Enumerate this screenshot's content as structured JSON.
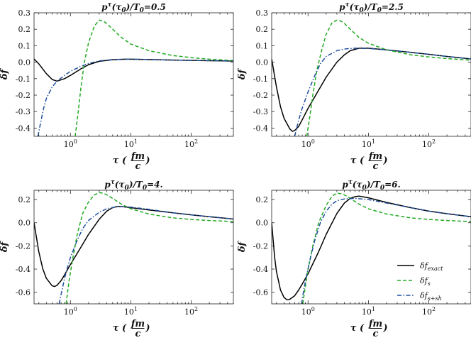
{
  "figure": {
    "background": "#ffffff"
  },
  "chart_data": [
    {
      "type": "line",
      "title": "p^τ(τ0)/T0=0.5",
      "title_parts": {
        "main": "p",
        "sup": "τ",
        "rest": "(τ",
        "sub": "0",
        "rest2": ")/T",
        "sub2": "0",
        "tail": "=0.5"
      },
      "xlabel": "τ (fm/c)",
      "ylabel": "δf",
      "xscale": "log",
      "xlim": [
        0.25,
        500
      ],
      "ylim": [
        -0.45,
        0.3
      ],
      "xticks": [
        1,
        10,
        100
      ],
      "xtick_labels": [
        "10^0",
        "10^1",
        "10^2"
      ],
      "yticks": [
        -0.4,
        -0.3,
        -0.2,
        -0.1,
        0.0,
        0.1,
        0.2,
        0.3
      ],
      "ytick_labels": [
        "-0.4",
        "-0.3",
        "-0.2",
        "-0.1",
        "0.0",
        "0.1",
        "0.2",
        "0.3"
      ],
      "series": [
        {
          "name": "δf_exact",
          "color": "#000000",
          "style": "solid",
          "x": [
            0.25,
            0.3,
            0.4,
            0.5,
            0.6,
            0.8,
            1.0,
            1.5,
            2,
            3,
            5,
            8,
            10,
            20,
            50,
            100,
            200,
            500
          ],
          "y": [
            0.02,
            -0.01,
            -0.07,
            -0.105,
            -0.115,
            -0.1,
            -0.08,
            -0.04,
            -0.015,
            0.005,
            0.015,
            0.018,
            0.018,
            0.016,
            0.013,
            0.011,
            0.009,
            0.007
          ]
        },
        {
          "name": "δf_s",
          "color": "#22aa22",
          "style": "dashed",
          "x": [
            1.2,
            1.35,
            1.5,
            1.7,
            2.0,
            2.5,
            3.0,
            3.5,
            4,
            5,
            7,
            10,
            20,
            50,
            100,
            200,
            500
          ],
          "y": [
            -0.45,
            -0.3,
            -0.15,
            0.0,
            0.12,
            0.22,
            0.255,
            0.25,
            0.235,
            0.2,
            0.15,
            0.11,
            0.07,
            0.04,
            0.028,
            0.018,
            0.01
          ]
        },
        {
          "name": "δf_s+sh",
          "color": "#1f4e9c",
          "style": "dashdot",
          "x": [
            0.29,
            0.32,
            0.36,
            0.4,
            0.5,
            0.6,
            0.8,
            1.0,
            1.5,
            2,
            3,
            5,
            10,
            20,
            50,
            100,
            500
          ],
          "y": [
            -0.45,
            -0.37,
            -0.28,
            -0.22,
            -0.15,
            -0.115,
            -0.08,
            -0.055,
            -0.025,
            -0.008,
            0.008,
            0.016,
            0.018,
            0.016,
            0.013,
            0.011,
            0.007
          ]
        }
      ]
    },
    {
      "type": "line",
      "title": "p^τ(τ0)/T0=2.5",
      "title_parts": {
        "main": "p",
        "sup": "τ",
        "rest": "(τ",
        "sub": "0",
        "rest2": ")/T",
        "sub2": "0",
        "tail": "=2.5"
      },
      "xlabel": "τ (fm/c)",
      "ylabel": "δf",
      "xscale": "log",
      "xlim": [
        0.25,
        500
      ],
      "ylim": [
        -0.45,
        0.3
      ],
      "xticks": [
        1,
        10,
        100
      ],
      "xtick_labels": [
        "10^0",
        "10^1",
        "10^2"
      ],
      "yticks": [
        -0.4,
        -0.3,
        -0.2,
        -0.1,
        0.0,
        0.1,
        0.2,
        0.3
      ],
      "ytick_labels": [
        "-0.4",
        "-0.3",
        "-0.2",
        "-0.1",
        "0.0",
        "0.1",
        "0.2",
        "0.3"
      ],
      "series": [
        {
          "name": "δf_exact",
          "color": "#000000",
          "style": "solid",
          "x": [
            0.25,
            0.3,
            0.35,
            0.4,
            0.5,
            0.55,
            0.6,
            0.7,
            0.8,
            1.0,
            1.5,
            2,
            3,
            4,
            5,
            7,
            10,
            20,
            50,
            100,
            200,
            500
          ],
          "y": [
            0.02,
            -0.15,
            -0.27,
            -0.34,
            -0.405,
            -0.42,
            -0.415,
            -0.39,
            -0.35,
            -0.28,
            -0.17,
            -0.09,
            0.0,
            0.045,
            0.07,
            0.085,
            0.085,
            0.075,
            0.06,
            0.048,
            0.035,
            0.02
          ]
        },
        {
          "name": "δf_s",
          "color": "#22aa22",
          "style": "dashed",
          "x": [
            0.95,
            1.05,
            1.2,
            1.4,
            1.7,
            2.0,
            2.5,
            3.0,
            3.5,
            4,
            5,
            7,
            10,
            20,
            50,
            100,
            200,
            500
          ],
          "y": [
            -0.45,
            -0.35,
            -0.2,
            -0.05,
            0.08,
            0.17,
            0.24,
            0.255,
            0.25,
            0.235,
            0.2,
            0.15,
            0.115,
            0.075,
            0.045,
            0.032,
            0.022,
            0.012
          ]
        },
        {
          "name": "δf_s+sh",
          "color": "#1f4e9c",
          "style": "dashdot",
          "x": [
            0.6,
            0.65,
            0.7,
            0.8,
            1.0,
            1.3,
            1.6,
            2,
            3,
            4,
            6,
            10,
            20,
            50,
            100,
            200,
            500
          ],
          "y": [
            -0.45,
            -0.4,
            -0.35,
            -0.28,
            -0.18,
            -0.08,
            -0.01,
            0.035,
            0.07,
            0.08,
            0.085,
            0.083,
            0.075,
            0.06,
            0.048,
            0.035,
            0.02
          ]
        }
      ]
    },
    {
      "type": "line",
      "title": "p^τ(τ0)/T0=4.",
      "title_parts": {
        "main": "p",
        "sup": "τ",
        "rest": "(τ",
        "sub": "0",
        "rest2": ")/T",
        "sub2": "0",
        "tail": "=4."
      },
      "xlabel": "τ (fm/c)",
      "ylabel": "δf",
      "xscale": "log",
      "xlim": [
        0.25,
        500
      ],
      "ylim": [
        -0.7,
        0.28
      ],
      "xticks": [
        1,
        10,
        100
      ],
      "xtick_labels": [
        "10^0",
        "10^1",
        "10^2"
      ],
      "yticks": [
        -0.6,
        -0.4,
        -0.2,
        0.0,
        0.2
      ],
      "ytick_labels": [
        "-0.6",
        "-0.4",
        "-0.2",
        "0.0",
        "0.2"
      ],
      "series": [
        {
          "name": "δf_exact",
          "color": "#000000",
          "style": "solid",
          "x": [
            0.25,
            0.3,
            0.35,
            0.4,
            0.5,
            0.55,
            0.6,
            0.7,
            0.8,
            1.0,
            1.5,
            2,
            3,
            4,
            5,
            6,
            7,
            10,
            20,
            50,
            100,
            200,
            500
          ],
          "y": [
            0.0,
            -0.25,
            -0.4,
            -0.48,
            -0.545,
            -0.55,
            -0.54,
            -0.5,
            -0.45,
            -0.36,
            -0.21,
            -0.1,
            0.03,
            0.1,
            0.13,
            0.14,
            0.14,
            0.13,
            0.11,
            0.085,
            0.068,
            0.052,
            0.032
          ]
        },
        {
          "name": "δf_s",
          "color": "#22aa22",
          "style": "dashed",
          "x": [
            0.85,
            0.95,
            1.1,
            1.3,
            1.6,
            2.0,
            2.5,
            3.0,
            3.5,
            4,
            5,
            7,
            10,
            20,
            50,
            100,
            200,
            500
          ],
          "y": [
            -0.7,
            -0.5,
            -0.3,
            -0.1,
            0.08,
            0.18,
            0.24,
            0.26,
            0.255,
            0.24,
            0.21,
            0.16,
            0.12,
            0.075,
            0.042,
            0.028,
            0.019,
            0.01
          ]
        },
        {
          "name": "δf_s+sh",
          "color": "#1f4e9c",
          "style": "dashdot",
          "x": [
            0.65,
            0.7,
            0.8,
            0.9,
            1.0,
            1.3,
            1.6,
            2,
            3,
            4,
            6,
            10,
            20,
            50,
            100,
            200,
            500
          ],
          "y": [
            -0.7,
            -0.62,
            -0.48,
            -0.38,
            -0.3,
            -0.15,
            -0.05,
            0.02,
            0.09,
            0.12,
            0.14,
            0.135,
            0.115,
            0.085,
            0.068,
            0.052,
            0.032
          ]
        }
      ]
    },
    {
      "type": "line",
      "title": "p^τ(τ0)/T0=6.",
      "title_parts": {
        "main": "p",
        "sup": "τ",
        "rest": "(τ",
        "sub": "0",
        "rest2": ")/T",
        "sub2": "0",
        "tail": "=6."
      },
      "xlabel": "τ (fm/c)",
      "ylabel": "δf",
      "xscale": "log",
      "xlim": [
        0.25,
        500
      ],
      "ylim": [
        -0.7,
        0.28
      ],
      "xticks": [
        1,
        10,
        100
      ],
      "xtick_labels": [
        "10^0",
        "10^1",
        "10^2"
      ],
      "yticks": [
        -0.6,
        -0.4,
        -0.2,
        0.0,
        0.2
      ],
      "ytick_labels": [
        "-0.6",
        "-0.4",
        "-0.2",
        "0.0",
        "0.2"
      ],
      "legend": {
        "placement": "bottom-right",
        "entries": [
          {
            "base": "δf",
            "sub": "exact",
            "color": "#000000",
            "style": "solid"
          },
          {
            "base": "δf",
            "sub": "s",
            "color": "#22aa22",
            "style": "dashed"
          },
          {
            "base": "δf",
            "sub": "s+sh",
            "color": "#1f4e9c",
            "style": "dashdot"
          }
        ]
      },
      "series": [
        {
          "name": "δf_exact",
          "color": "#000000",
          "style": "solid",
          "x": [
            0.25,
            0.28,
            0.3,
            0.35,
            0.4,
            0.45,
            0.5,
            0.6,
            0.7,
            0.8,
            1.0,
            1.5,
            2,
            3,
            4,
            5,
            6,
            7,
            10,
            20,
            50,
            100,
            200,
            500
          ],
          "y": [
            0.0,
            -0.3,
            -0.42,
            -0.58,
            -0.645,
            -0.665,
            -0.66,
            -0.63,
            -0.58,
            -0.53,
            -0.44,
            -0.25,
            -0.1,
            0.08,
            0.17,
            0.21,
            0.225,
            0.23,
            0.215,
            0.175,
            0.13,
            0.1,
            0.078,
            0.052
          ]
        },
        {
          "name": "δf_s",
          "color": "#22aa22",
          "style": "dashed",
          "x": [
            0.82,
            0.9,
            1.0,
            1.2,
            1.5,
            2.0,
            2.5,
            3.0,
            3.5,
            4,
            5,
            7,
            10,
            20,
            50,
            100,
            200,
            500
          ],
          "y": [
            -0.7,
            -0.55,
            -0.4,
            -0.2,
            0.0,
            0.15,
            0.23,
            0.255,
            0.25,
            0.24,
            0.21,
            0.16,
            0.12,
            0.075,
            0.042,
            0.028,
            0.019,
            0.01
          ]
        },
        {
          "name": "δf_s+sh",
          "color": "#1f4e9c",
          "style": "dashdot",
          "x": [
            0.78,
            0.85,
            0.95,
            1.1,
            1.3,
            1.6,
            2,
            2.5,
            3,
            4,
            6,
            10,
            20,
            50,
            100,
            200,
            500
          ],
          "y": [
            -0.7,
            -0.58,
            -0.45,
            -0.3,
            -0.15,
            0.0,
            0.1,
            0.16,
            0.19,
            0.205,
            0.21,
            0.2,
            0.17,
            0.13,
            0.1,
            0.078,
            0.052
          ]
        }
      ]
    }
  ]
}
